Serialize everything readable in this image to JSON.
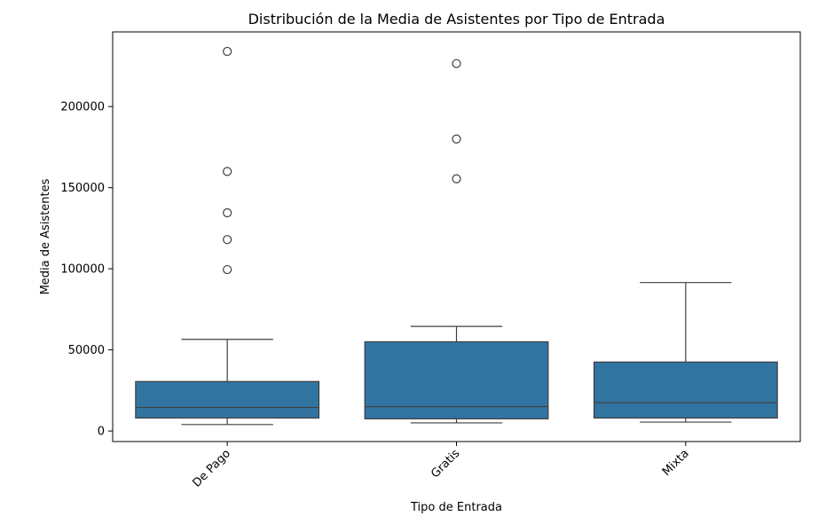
{
  "chart_data": {
    "type": "box",
    "title": "Distribución de la Media de Asistentes por Tipo de Entrada",
    "xlabel": "Tipo de Entrada",
    "ylabel": "Media de Asistentes",
    "categories": [
      "De Pago",
      "Gratis",
      "Mixta"
    ],
    "ylim": [
      -6500,
      246000
    ],
    "yticks": [
      0,
      50000,
      100000,
      150000,
      200000
    ],
    "ytick_labels": [
      "0",
      "50000",
      "100000",
      "150000",
      "200000"
    ],
    "grid": false,
    "legend": "none",
    "box_color": "#3274a1",
    "line_color": "#3f3f3f",
    "boxes": [
      {
        "category": "De Pago",
        "whisker_low": 4000,
        "q1": 8000,
        "median": 14500,
        "q3": 30500,
        "whisker_high": 56500,
        "outliers": [
          99500,
          118000,
          134500,
          160000,
          234000
        ]
      },
      {
        "category": "Gratis",
        "whisker_low": 5000,
        "q1": 7500,
        "median": 15000,
        "q3": 55000,
        "whisker_high": 64500,
        "outliers": [
          155500,
          180000,
          226500
        ]
      },
      {
        "category": "Mixta",
        "whisker_low": 5500,
        "q1": 8000,
        "median": 17500,
        "q3": 42500,
        "whisker_high": 91500,
        "outliers": []
      }
    ]
  }
}
